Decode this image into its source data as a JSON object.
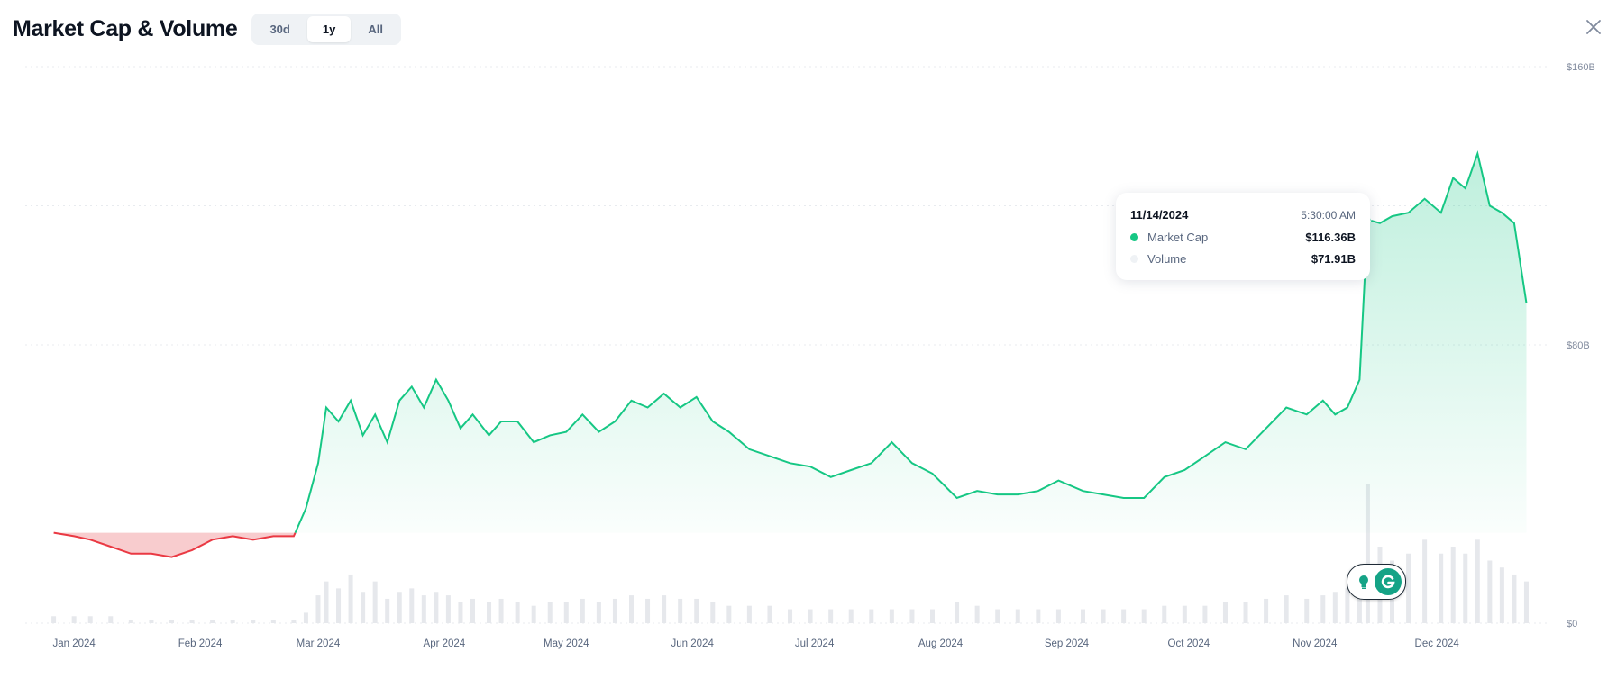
{
  "header": {
    "title": "Market Cap & Volume",
    "ranges": [
      {
        "label": "30d",
        "active": false
      },
      {
        "label": "1y",
        "active": true
      },
      {
        "label": "All",
        "active": false
      }
    ],
    "close_icon": "close-icon"
  },
  "tooltip": {
    "date": "11/14/2024",
    "time": "5:30:00 AM",
    "rows": [
      {
        "label": "Market Cap",
        "value": "$116.36B",
        "color": "#16c784"
      },
      {
        "label": "Volume",
        "value": "$71.91B",
        "color": "#eff2f5"
      }
    ]
  },
  "extension_badge": {
    "icon": "grammarly-g-icon",
    "secondary_icon": "lightbulb-icon"
  },
  "colors": {
    "up": "#16c784",
    "down": "#ea3943",
    "volume": "#e6e8ec",
    "grid": "#e8ebef"
  },
  "chart_data": {
    "type": "area",
    "x_ticks": [
      "Jan 2024",
      "Feb 2024",
      "Mar 2024",
      "Apr 2024",
      "May 2024",
      "Jun 2024",
      "Jul 2024",
      "Aug 2024",
      "Sep 2024",
      "Oct 2024",
      "Nov 2024",
      "Dec 2024"
    ],
    "y_ticks": [
      "$160B",
      "$80B",
      "$0"
    ],
    "ylim": [
      0,
      160
    ],
    "baseline": 26,
    "x": [
      "2023-12-27",
      "2024-01-01",
      "2024-01-05",
      "2024-01-10",
      "2024-01-15",
      "2024-01-20",
      "2024-01-25",
      "2024-01-30",
      "2024-02-04",
      "2024-02-09",
      "2024-02-14",
      "2024-02-19",
      "2024-02-24",
      "2024-02-27",
      "2024-03-01",
      "2024-03-03",
      "2024-03-06",
      "2024-03-09",
      "2024-03-12",
      "2024-03-15",
      "2024-03-18",
      "2024-03-21",
      "2024-03-24",
      "2024-03-27",
      "2024-03-30",
      "2024-04-02",
      "2024-04-05",
      "2024-04-08",
      "2024-04-12",
      "2024-04-15",
      "2024-04-19",
      "2024-04-23",
      "2024-04-27",
      "2024-05-01",
      "2024-05-05",
      "2024-05-09",
      "2024-05-13",
      "2024-05-17",
      "2024-05-21",
      "2024-05-25",
      "2024-05-29",
      "2024-06-02",
      "2024-06-06",
      "2024-06-10",
      "2024-06-15",
      "2024-06-20",
      "2024-06-25",
      "2024-06-30",
      "2024-07-05",
      "2024-07-10",
      "2024-07-15",
      "2024-07-20",
      "2024-07-25",
      "2024-07-30",
      "2024-08-05",
      "2024-08-10",
      "2024-08-15",
      "2024-08-20",
      "2024-08-25",
      "2024-08-30",
      "2024-09-05",
      "2024-09-10",
      "2024-09-15",
      "2024-09-20",
      "2024-09-25",
      "2024-09-30",
      "2024-10-05",
      "2024-10-10",
      "2024-10-15",
      "2024-10-20",
      "2024-10-25",
      "2024-10-30",
      "2024-11-03",
      "2024-11-06",
      "2024-11-09",
      "2024-11-12",
      "2024-11-14",
      "2024-11-17",
      "2024-11-20",
      "2024-11-24",
      "2024-11-28",
      "2024-12-02",
      "2024-12-05",
      "2024-12-08",
      "2024-12-11",
      "2024-12-14",
      "2024-12-17",
      "2024-12-20",
      "2024-12-23"
    ],
    "series": [
      {
        "type": "line",
        "values": [
          26,
          25,
          24,
          22,
          20,
          20,
          19,
          21,
          24,
          25,
          24,
          25,
          25,
          33,
          46,
          62,
          58,
          64,
          54,
          60,
          52,
          64,
          68,
          62,
          70,
          64,
          56,
          60,
          54,
          58,
          58,
          52,
          54,
          55,
          60,
          55,
          58,
          64,
          62,
          66,
          62,
          65,
          58,
          55,
          50,
          48,
          46,
          45,
          42,
          44,
          46,
          52,
          46,
          43,
          36,
          38,
          37,
          37,
          38,
          41,
          38,
          37,
          36,
          36,
          42,
          44,
          48,
          52,
          50,
          56,
          62,
          60,
          64,
          60,
          62,
          70,
          116,
          115,
          117,
          118,
          122,
          118,
          128,
          125,
          135,
          120,
          118,
          115,
          92
        ],
        "color_above_baseline": "#16c784",
        "color_below_baseline": "#ea3943"
      },
      {
        "type": "bar",
        "values": [
          2,
          2,
          2,
          2,
          1,
          1,
          1,
          1,
          1,
          1,
          1,
          1,
          1,
          3,
          8,
          12,
          10,
          14,
          9,
          12,
          7,
          9,
          10,
          8,
          9,
          8,
          6,
          7,
          6,
          7,
          6,
          5,
          6,
          6,
          7,
          6,
          7,
          8,
          7,
          8,
          7,
          7,
          6,
          5,
          5,
          5,
          4,
          4,
          4,
          4,
          4,
          4,
          4,
          4,
          6,
          5,
          4,
          4,
          4,
          4,
          4,
          4,
          4,
          4,
          5,
          5,
          5,
          6,
          6,
          7,
          8,
          7,
          8,
          9,
          10,
          14,
          40,
          22,
          18,
          20,
          24,
          20,
          22,
          20,
          24,
          18,
          16,
          14,
          12
        ]
      }
    ]
  }
}
